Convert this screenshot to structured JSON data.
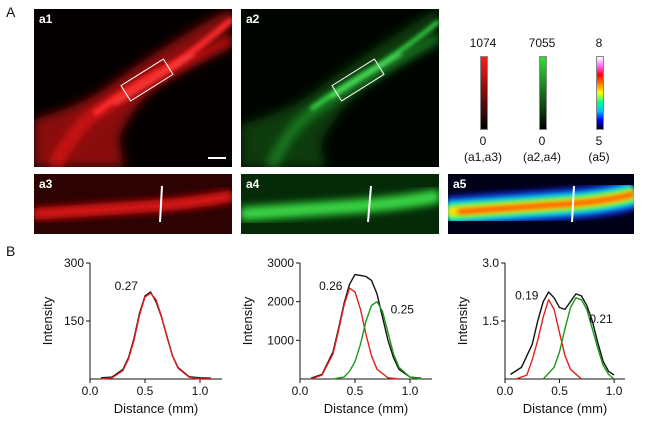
{
  "section_a_label": "A",
  "section_b_label": "B",
  "panels": {
    "a1": "a1",
    "a2": "a2",
    "a3": "a3",
    "a4": "a4",
    "a5": "a5"
  },
  "colorbars": [
    {
      "max": "1074",
      "min": "0",
      "caption": "(a1,a3)",
      "gradient": [
        "#000000",
        "#ff1a1a"
      ]
    },
    {
      "max": "7055",
      "min": "0",
      "caption": "(a2,a4)",
      "gradient": [
        "#000000",
        "#33dd33"
      ]
    },
    {
      "max": "8",
      "min": "5",
      "caption": "(a5)",
      "gradient": [
        "#000020",
        "#0000ff",
        "#00c0ff",
        "#00ff80",
        "#ffff00",
        "#ff8000",
        "#ff0000",
        "#ff66ff",
        "#ffffff"
      ]
    }
  ],
  "chart_data": [
    {
      "type": "line",
      "xlabel": "Distance (mm)",
      "ylabel": "Intensity",
      "xlim": [
        0,
        1.2
      ],
      "ylim": [
        0,
        300
      ],
      "xticks": [
        "0.0",
        "0.5",
        "1.0"
      ],
      "yticks": [
        "150",
        "300"
      ],
      "annotations": [
        {
          "text": "0.27",
          "x": 0.33,
          "y": 230
        }
      ],
      "series": [
        {
          "color": "#111111",
          "x": [
            0.1,
            0.2,
            0.3,
            0.35,
            0.4,
            0.45,
            0.5,
            0.55,
            0.6,
            0.65,
            0.7,
            0.75,
            0.8,
            0.9,
            1.0,
            1.1
          ],
          "y": [
            3,
            5,
            25,
            55,
            105,
            170,
            215,
            225,
            200,
            160,
            110,
            60,
            30,
            6,
            3,
            2
          ]
        },
        {
          "color": "#e02020",
          "x": [
            0.1,
            0.2,
            0.3,
            0.35,
            0.4,
            0.45,
            0.5,
            0.55,
            0.6,
            0.65,
            0.7,
            0.75,
            0.8,
            0.9,
            1.0,
            1.1
          ],
          "y": [
            0,
            3,
            22,
            52,
            100,
            165,
            212,
            222,
            205,
            162,
            108,
            60,
            28,
            5,
            0,
            0
          ]
        }
      ]
    },
    {
      "type": "line",
      "xlabel": "Distance (mm)",
      "ylabel": "Intensity",
      "xlim": [
        0,
        1.2
      ],
      "ylim": [
        0,
        3000
      ],
      "xticks": [
        "0.0",
        "0.5",
        "1.0"
      ],
      "yticks": [
        "1000",
        "2000",
        "3000"
      ],
      "annotations": [
        {
          "text": "0.26",
          "x": 0.28,
          "y": 2300
        },
        {
          "text": "0.25",
          "x": 0.93,
          "y": 1700
        }
      ],
      "series": [
        {
          "color": "#111111",
          "x": [
            0.1,
            0.2,
            0.3,
            0.35,
            0.4,
            0.45,
            0.5,
            0.55,
            0.6,
            0.65,
            0.7,
            0.75,
            0.8,
            0.85,
            0.9,
            1.0,
            1.1
          ],
          "y": [
            20,
            120,
            700,
            1300,
            1950,
            2450,
            2700,
            2680,
            2650,
            2550,
            2200,
            1600,
            1000,
            550,
            250,
            50,
            20
          ]
        },
        {
          "color": "#e02020",
          "x": [
            0.1,
            0.2,
            0.3,
            0.35,
            0.4,
            0.45,
            0.5,
            0.55,
            0.6,
            0.65,
            0.7,
            0.8,
            0.9
          ],
          "y": [
            0,
            100,
            650,
            1250,
            1900,
            2350,
            2250,
            1800,
            1150,
            600,
            250,
            30,
            0
          ]
        },
        {
          "color": "#1a9a1a",
          "x": [
            0.3,
            0.4,
            0.45,
            0.5,
            0.55,
            0.6,
            0.65,
            0.7,
            0.75,
            0.8,
            0.85,
            0.9,
            1.0,
            1.1
          ],
          "y": [
            0,
            50,
            200,
            450,
            900,
            1500,
            1900,
            2000,
            1750,
            1200,
            650,
            300,
            50,
            0
          ]
        }
      ]
    },
    {
      "type": "line",
      "xlabel": "Distance (mm)",
      "ylabel": "Intensity",
      "xlim": [
        0,
        1.1
      ],
      "ylim": [
        0,
        3.0
      ],
      "xticks": [
        "0.0",
        "0.5",
        "1.0"
      ],
      "yticks": [
        "1.5",
        "3.0"
      ],
      "annotations": [
        {
          "text": "0.19",
          "x": 0.2,
          "y": 2.05
        },
        {
          "text": "0.21",
          "x": 0.88,
          "y": 1.45
        }
      ],
      "series": [
        {
          "color": "#111111",
          "x": [
            0.05,
            0.15,
            0.25,
            0.3,
            0.35,
            0.4,
            0.45,
            0.5,
            0.55,
            0.6,
            0.65,
            0.7,
            0.75,
            0.8,
            0.85,
            0.9,
            0.95,
            1.0
          ],
          "y": [
            0.12,
            0.3,
            0.9,
            1.5,
            2.0,
            2.25,
            2.1,
            1.85,
            1.8,
            2.0,
            2.2,
            2.15,
            1.9,
            1.5,
            0.95,
            0.45,
            0.2,
            0.1
          ]
        },
        {
          "color": "#e02020",
          "x": [
            0.1,
            0.2,
            0.25,
            0.3,
            0.35,
            0.4,
            0.45,
            0.5,
            0.55,
            0.6,
            0.7
          ],
          "y": [
            0,
            0.1,
            0.5,
            1.0,
            1.6,
            2.05,
            1.8,
            1.2,
            0.6,
            0.25,
            0
          ]
        },
        {
          "color": "#1a9a1a",
          "x": [
            0.35,
            0.45,
            0.5,
            0.55,
            0.6,
            0.65,
            0.7,
            0.75,
            0.8,
            0.85,
            0.9,
            0.95,
            1.0
          ],
          "y": [
            0,
            0.3,
            0.7,
            1.3,
            1.85,
            2.1,
            2.05,
            1.8,
            1.3,
            0.8,
            0.35,
            0.12,
            0
          ]
        }
      ]
    }
  ]
}
